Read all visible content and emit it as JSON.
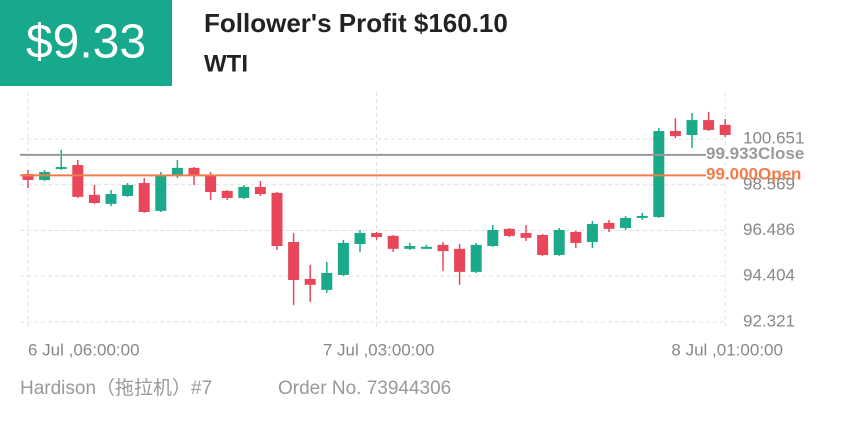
{
  "header": {
    "amount": "$9.33",
    "title": "Follower's Profit $160.10",
    "symbol": "WTI"
  },
  "chart_data": {
    "type": "candlestick",
    "categories": [
      "6 Jul ,06:00:00",
      null,
      null,
      null,
      null,
      null,
      null,
      null,
      null,
      null,
      null,
      null,
      null,
      null,
      null,
      null,
      null,
      null,
      null,
      null,
      null,
      "7 Jul ,03:00:00",
      null,
      null,
      null,
      null,
      null,
      null,
      null,
      null,
      null,
      null,
      null,
      null,
      null,
      null,
      null,
      null,
      null,
      null,
      null,
      null,
      "8 Jul ,01:00:00"
    ],
    "open": [
      99.06,
      98.79,
      99.29,
      99.47,
      98.11,
      97.7,
      98.06,
      98.65,
      97.38,
      99.02,
      99.34,
      99.02,
      98.29,
      97.97,
      98.47,
      98.2,
      95.96,
      94.28,
      93.78,
      94.46,
      95.87,
      96.37,
      96.24,
      95.65,
      95.69,
      95.83,
      95.65,
      94.6,
      95.78,
      96.56,
      96.37,
      96.28,
      95.37,
      96.42,
      95.96,
      96.83,
      96.6,
      97.06,
      97.1,
      101.02,
      100.84,
      101.52,
      101.3
    ],
    "high": [
      99.25,
      99.25,
      100.16,
      99.7,
      98.56,
      98.33,
      98.65,
      98.88,
      99.15,
      99.7,
      99.38,
      99.15,
      98.33,
      98.56,
      98.74,
      98.24,
      96.37,
      94.92,
      95.05,
      96.06,
      96.51,
      96.42,
      96.28,
      95.92,
      95.83,
      95.96,
      95.87,
      95.92,
      96.74,
      96.6,
      96.74,
      96.33,
      96.6,
      96.47,
      96.92,
      96.97,
      97.15,
      97.29,
      101.16,
      101.61,
      101.84,
      101.89,
      101.57
    ],
    "low": [
      98.42,
      98.74,
      99.25,
      97.97,
      97.7,
      97.6,
      98.02,
      97.29,
      97.33,
      98.88,
      98.56,
      97.88,
      97.88,
      97.92,
      98.06,
      95.6,
      93.09,
      93.23,
      93.64,
      94.42,
      95.51,
      96.06,
      95.51,
      95.6,
      95.65,
      94.64,
      94.01,
      94.55,
      95.74,
      96.19,
      96.01,
      95.33,
      95.33,
      95.69,
      95.69,
      96.42,
      96.51,
      96.97,
      97.06,
      100.7,
      100.25,
      101.02,
      100.75
    ],
    "close": [
      98.79,
      99.15,
      99.38,
      98.02,
      97.74,
      98.15,
      98.56,
      97.33,
      99.02,
      99.34,
      99.02,
      98.24,
      97.97,
      98.47,
      98.15,
      95.78,
      94.23,
      94.01,
      94.55,
      95.92,
      96.37,
      96.19,
      95.65,
      95.78,
      95.74,
      95.55,
      94.6,
      95.83,
      96.51,
      96.24,
      96.15,
      95.37,
      96.51,
      95.92,
      96.78,
      96.56,
      97.06,
      97.15,
      101.02,
      100.79,
      101.52,
      101.07,
      100.84
    ],
    "up_color": "#1aaa8a",
    "down_color": "#e8475a",
    "ylim": [
      91.95,
      102.8
    ],
    "yticks": [
      92.321,
      94.404,
      96.486,
      98.569,
      100.651
    ],
    "grid": true,
    "lines": [
      {
        "name": "Close",
        "value": 99.933,
        "value_label": "99.933",
        "color": "#9a9a9a"
      },
      {
        "name": "Open",
        "value": 99.0,
        "value_label": "99.000",
        "color": "#f07c4a"
      }
    ]
  },
  "footer": {
    "trader": "Hardison（拖拉机）#7",
    "order": "Order No. 73944306"
  }
}
